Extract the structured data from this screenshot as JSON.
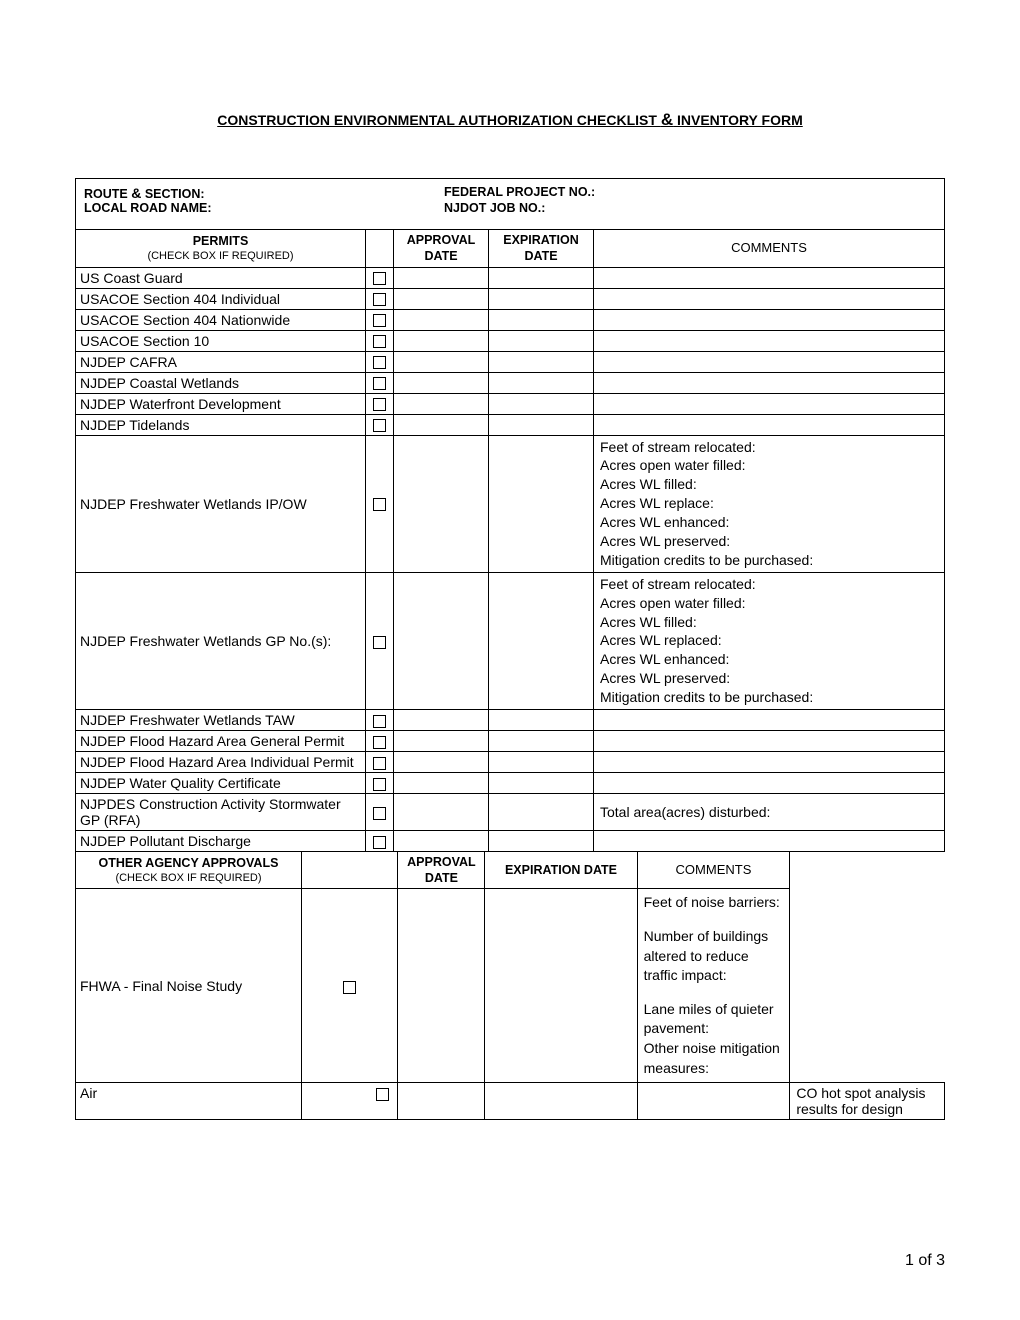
{
  "title_prefix": "CONSTRUCTION ENVIRONMENTAL AUTHORIZATION CHECKLIST ",
  "title_amp": "&",
  "title_suffix": " INVENTORY FORM",
  "header": {
    "route_section_label": "ROUTE & SECTION:",
    "federal_project_label": "FEDERAL PROJECT NO.:",
    "local_road_label": "LOCAL ROAD NAME:",
    "njdot_job_label": "NJDOT JOB NO.:"
  },
  "permits_header": {
    "permits": "PERMITS",
    "check_sub": "(CHECK BOX IF REQUIRED)",
    "approval": "APPROVAL DATE",
    "expiration": "EXPIRATION DATE",
    "comments": "COMMENTS"
  },
  "permits": [
    {
      "name": "US Coast Guard",
      "comments": ""
    },
    {
      "name": "USACOE  Section 404 Individual",
      "comments": ""
    },
    {
      "name": "USACOE  Section 404 Nationwide",
      "comments": ""
    },
    {
      "name": "USACOE   Section 10",
      "comments": ""
    },
    {
      "name": "NJDEP  CAFRA",
      "comments": ""
    },
    {
      "name": "NJDEP  Coastal  Wetlands",
      "comments": ""
    },
    {
      "name": "NJDEP  Waterfront Development",
      "comments": ""
    },
    {
      "name": "NJDEP  Tidelands",
      "comments": ""
    }
  ],
  "wetlands_ipow": {
    "name": "NJDEP Freshwater Wetlands IP/OW",
    "lines": [
      "Feet of stream relocated:",
      "Acres open water filled:",
      "Acres WL filled:",
      "Acres WL replace:",
      "Acres WL enhanced:",
      "Acres WL preserved:",
      "Mitigation credits to be purchased:"
    ]
  },
  "wetlands_gp": {
    "name": "NJDEP  Freshwater Wetlands GP No.(s):",
    "lines": [
      "Feet of stream relocated:",
      "Acres open water filled:",
      "Acres WL filled:",
      "Acres WL replaced:",
      "Acres WL enhanced:",
      "Acres WL preserved:",
      "Mitigation credits to be purchased:"
    ]
  },
  "permits2": [
    {
      "name": "NJDEP Freshwater Wetlands TAW",
      "comments": ""
    },
    {
      "name": "NJDEP  Flood Hazard Area General Permit",
      "comments": ""
    },
    {
      "name": "NJDEP  Flood Hazard Area Individual Permit",
      "comments": ""
    },
    {
      "name": "NJDEP  Water Quality Certificate",
      "comments": ""
    }
  ],
  "njpdes": {
    "name": "NJPDES Construction Activity Stormwater GP (RFA)",
    "comments": "Total area(acres) disturbed:"
  },
  "pollutant": {
    "name": "NJDEP  Pollutant Discharge",
    "comments": ""
  },
  "other_header": {
    "title": "OTHER AGENCY APPROVALS",
    "check_sub": "(CHECK BOX IF REQUIRED)",
    "approval": "APPROVAL DATE",
    "expiration": "EXPIRATION DATE",
    "comments": "COMMENTS"
  },
  "noise": {
    "name": "FHWA - Final Noise Study",
    "lines": [
      "Feet of noise barriers:",
      "Number of buildings altered to reduce traffic impact:",
      "Lane miles of quieter pavement:",
      "Other noise mitigation measures:"
    ]
  },
  "air": {
    "name": "Air",
    "comments": "CO hot spot analysis results for design"
  },
  "page_num": "1 of 3"
}
